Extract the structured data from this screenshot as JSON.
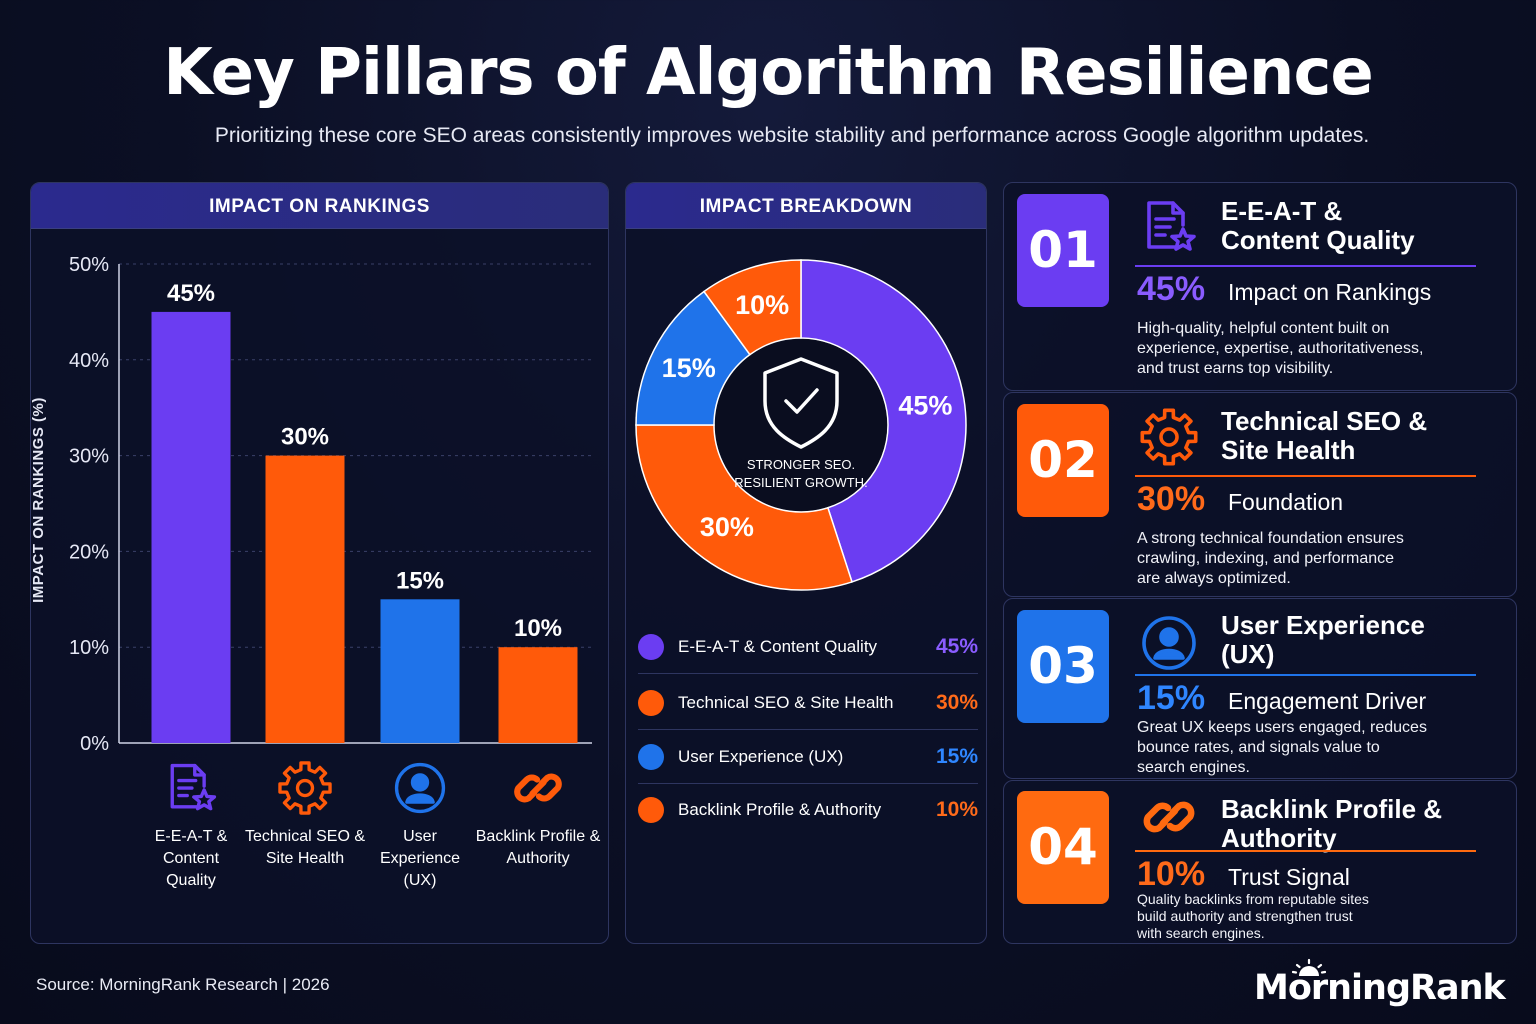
{
  "title": "Key Pillars of Algorithm Resilience",
  "subtitle": "Prioritizing these core SEO areas consistently improves website stability and performance across Google algorithm updates.",
  "colors": {
    "purple": "#6b3df2",
    "orange": "#ff5a0a",
    "blue": "#1f73ea",
    "amber": "#ff6a10"
  },
  "chart_data": [
    {
      "type": "bar",
      "title": "IMPACT ON RANKINGS",
      "ylabel": "IMPACT ON RANKINGS (%)",
      "xlabel": "",
      "ylim": [
        0,
        50
      ],
      "yticks": [
        "0%",
        "10%",
        "20%",
        "30%",
        "40%",
        "50%"
      ],
      "grid": true,
      "categories": [
        "E-E-A-T & Content Quality",
        "Technical SEO & Site Health",
        "User Experience (UX)",
        "Backlink Profile & Authority"
      ],
      "category_lines": [
        [
          "E-E-A-T &",
          "Content",
          "Quality"
        ],
        [
          "Technical SEO &",
          "Site Health"
        ],
        [
          "User",
          "Experience",
          "(UX)"
        ],
        [
          "Backlink Profile &",
          "Authority"
        ]
      ],
      "values": [
        45,
        30,
        15,
        10
      ],
      "data_labels": [
        "45%",
        "30%",
        "15%",
        "10%"
      ],
      "bar_colors": [
        "#6b3df2",
        "#ff5a0a",
        "#1f73ea",
        "#ff5a0a"
      ],
      "icons": [
        "content-star-icon",
        "gear-icon",
        "user-icon",
        "link-icon"
      ]
    },
    {
      "type": "pie",
      "title": "IMPACT BREAKDOWN",
      "center_text": [
        "STRONGER SEO.",
        "RESILIENT GROWTH."
      ],
      "center_icon": "shield-check-icon",
      "slices": [
        {
          "label": "E-E-A-T & Content Quality",
          "value": 45,
          "display": "45%",
          "color": "#6b3df2"
        },
        {
          "label": "Technical SEO & Site Health",
          "value": 30,
          "display": "30%",
          "color": "#ff5a0a"
        },
        {
          "label": "User Experience (UX)",
          "value": 15,
          "display": "15%",
          "color": "#1f73ea"
        },
        {
          "label": "Backlink Profile & Authority",
          "value": 10,
          "display": "10%",
          "color": "#ff5a0a"
        }
      ]
    }
  ],
  "legend": [
    {
      "name": "E-E-A-T & Content Quality",
      "value": "45%",
      "color": "#6b3df2",
      "value_color": "#8a5cff"
    },
    {
      "name": "Technical SEO & Site Health",
      "value": "30%",
      "color": "#ff5a0a",
      "value_color": "#ff6a1a"
    },
    {
      "name": "User Experience (UX)",
      "value": "15%",
      "color": "#1f73ea",
      "value_color": "#2f86ff"
    },
    {
      "name": "Backlink Profile & Authority",
      "value": "10%",
      "color": "#ff5a0a",
      "value_color": "#ff6a1a"
    }
  ],
  "cards": [
    {
      "number": "01",
      "title_lines": [
        "E-E-A-T &",
        "Content Quality"
      ],
      "pct": "45%",
      "tag": "Impact on Rankings",
      "desc": [
        "High-quality, helpful content built on",
        "experience, expertise, authoritativeness,",
        "and trust earns top visibility."
      ],
      "color": "#6b3df2",
      "pct_color": "#8a5cff",
      "icon": "content-star-icon"
    },
    {
      "number": "02",
      "title_lines": [
        "Technical SEO &",
        "Site Health"
      ],
      "pct": "30%",
      "tag": "Foundation",
      "desc": [
        "A strong technical foundation ensures",
        "crawling, indexing, and performance",
        "are always optimized."
      ],
      "color": "#ff5a0a",
      "pct_color": "#ff6a1a",
      "icon": "gear-icon"
    },
    {
      "number": "03",
      "title_lines": [
        "User Experience",
        "(UX)"
      ],
      "pct": "15%",
      "tag": "Engagement Driver",
      "desc": [
        "Great UX keeps users engaged, reduces",
        "bounce rates, and signals value to",
        "search engines."
      ],
      "color": "#1f73ea",
      "pct_color": "#2f86ff",
      "icon": "user-icon"
    },
    {
      "number": "04",
      "title_lines": [
        "Backlink Profile &",
        "Authority"
      ],
      "pct": "10%",
      "tag": "Trust Signal",
      "desc": [
        "Quality backlinks from reputable sites",
        "build authority and strengthen trust",
        "with search engines."
      ],
      "color": "#ff6a10",
      "pct_color": "#ff6a1a",
      "icon": "link-icon"
    }
  ],
  "footer": {
    "source": "Source: MorningRank Research | 2026",
    "brand": "MorningRank"
  }
}
